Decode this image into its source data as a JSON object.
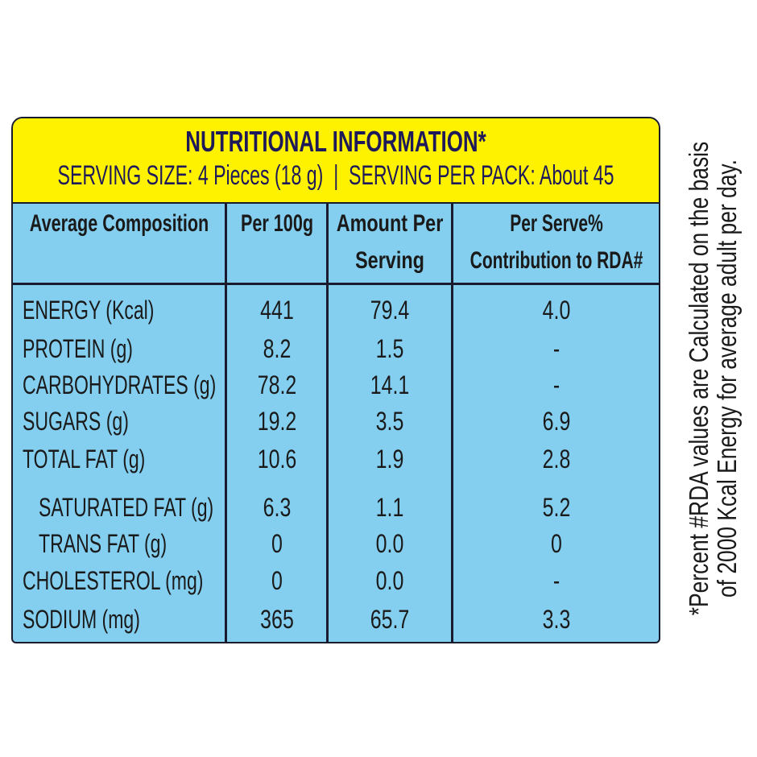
{
  "header": {
    "title": "NUTRITIONAL INFORMATION*",
    "serving_size": "SERVING SIZE: 4 Pieces (18 g)",
    "separator": "|",
    "serving_per_pack": "SERVING PER PACK: About 45"
  },
  "columns": [
    "Average Composition",
    "Per 100g",
    "Amount Per Serving",
    "Per Serve% Contribution to RDA#"
  ],
  "rows": [
    {
      "name": "ENERGY (Kcal)",
      "per100g": "441",
      "per_serving": "79.4",
      "rda": "4.0"
    },
    {
      "name": "PROTEIN (g)",
      "per100g": "8.2",
      "per_serving": "1.5",
      "rda": "-"
    },
    {
      "name": "CARBOHYDRATES (g)",
      "per100g": "78.2",
      "per_serving": "14.1",
      "rda": "-"
    },
    {
      "name": "SUGARS (g)",
      "per100g": "19.2",
      "per_serving": "3.5",
      "rda": "6.9"
    },
    {
      "name": "TOTAL FAT (g)",
      "per100g": "10.6",
      "per_serving": "1.9",
      "rda": "2.8"
    },
    {
      "name": "SATURATED FAT (g)",
      "per100g": "6.3",
      "per_serving": "1.1",
      "rda": "5.2"
    },
    {
      "name": "TRANS FAT (g)",
      "per100g": "0",
      "per_serving": "0.0",
      "rda": "0"
    },
    {
      "name": "CHOLESTEROL (mg)",
      "per100g": "0",
      "per_serving": "0.0",
      "rda": "-"
    },
    {
      "name": "SODIUM (mg)",
      "per100g": "365",
      "per_serving": "65.7",
      "rda": "3.3"
    }
  ],
  "footnote": {
    "line1": "*Percent #RDA values are Calculated on the basis",
    "line2": "of 2000 Kcal Energy for average adult per day."
  },
  "colors": {
    "header_yellow": "#fff200",
    "table_blue": "#84cff0",
    "text_navy": "#1e1a5a"
  }
}
